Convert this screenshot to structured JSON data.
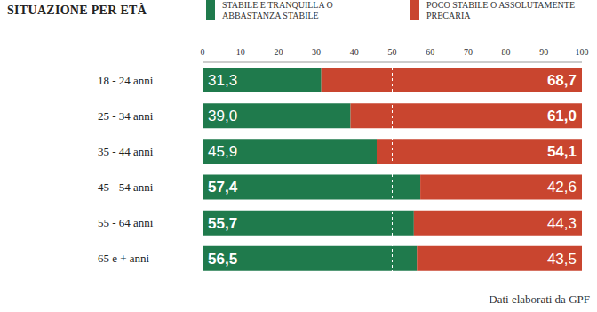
{
  "chart_data": {
    "type": "bar",
    "orientation": "horizontal",
    "stacked": true,
    "data_labels": true,
    "grid": false,
    "title": "SITUAZIONE PER ETÀ",
    "subtitle": "Dati elaborati da GPF",
    "categories": [
      "18 - 24 anni",
      "25 - 34 anni",
      "35 - 44 anni",
      "45 - 54 anni",
      "55 - 64 anni",
      "65 e + anni"
    ],
    "series": [
      {
        "name": "STABILE E TRANQUILLA O ABBASTANZA STABILE",
        "color": "#1f7a4c",
        "values": [
          31.3,
          39.0,
          45.9,
          57.4,
          55.7,
          56.5
        ],
        "value_labels": [
          "31,3",
          "39,0",
          "45,9",
          "57,4",
          "55,7",
          "56,5"
        ]
      },
      {
        "name": "POCO STABILE O ASSOLUTAMENTE PRECARIA",
        "color": "#c9452f",
        "values": [
          68.7,
          61.0,
          54.1,
          42.6,
          44.3,
          43.5
        ],
        "value_labels": [
          "68,7",
          "61,0",
          "54,1",
          "42,6",
          "44,3",
          "43,5"
        ]
      }
    ],
    "xlim": [
      0,
      100
    ],
    "xticks": [
      0,
      10,
      20,
      30,
      40,
      50,
      60,
      70,
      80,
      90,
      100
    ],
    "reference_line": 50
  }
}
